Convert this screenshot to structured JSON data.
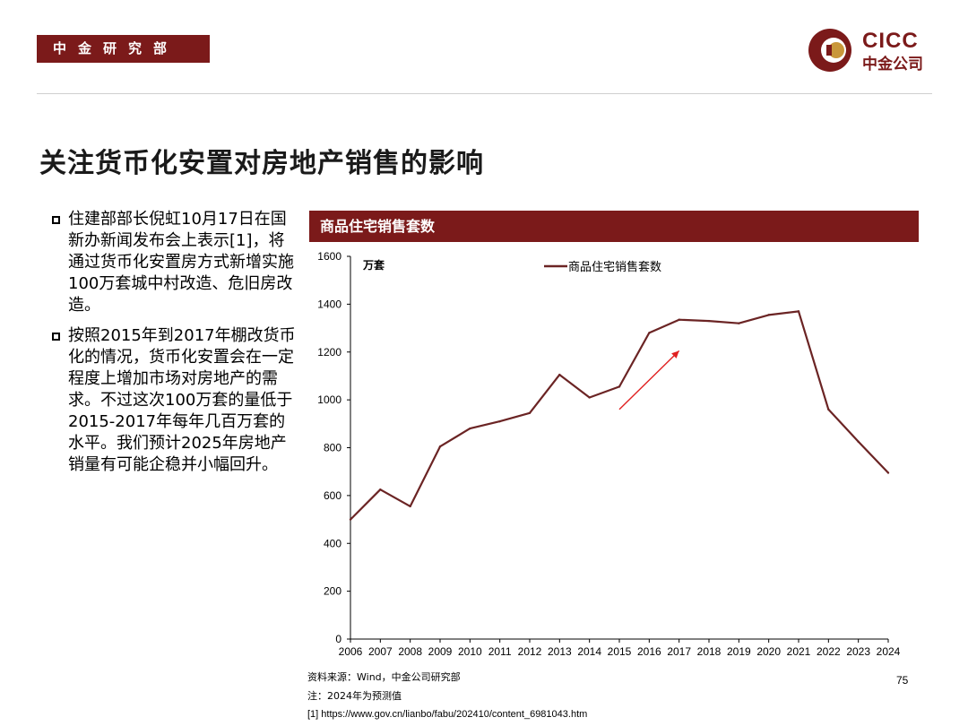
{
  "header": {
    "department": "中金研究部",
    "logo_en": "CICC",
    "logo_cn": "中金公司"
  },
  "title": "关注货币化安置对房地产销售的影响",
  "bullets": [
    {
      "text": "住建部部长倪虹10月17日在国新办新闻发布会上表示[1]，将通过货币化安置房方式新增实施100万套城中村改造、危旧房改造。"
    },
    {
      "text": "按照2015年到2017年棚改货币化的情况，货币化安置会在一定程度上增加市场对房地产的需求。不过这次100万套的量低于2015-2017年每年几百万套的水平。我们预计2025年房地产销量有可能企稳并小幅回升。"
    }
  ],
  "chart_header": "商品住宅销售套数",
  "chart_data": {
    "type": "line",
    "title": "商品住宅销售套数",
    "unit_label": "万套",
    "x": [
      "2006",
      "2007",
      "2008",
      "2009",
      "2010",
      "2011",
      "2012",
      "2013",
      "2014",
      "2015",
      "2016",
      "2017",
      "2018",
      "2019",
      "2020",
      "2021",
      "2022",
      "2023",
      "2024"
    ],
    "series": [
      {
        "name": "商品住宅销售套数",
        "color": "#6b2424",
        "values": [
          500,
          625,
          555,
          805,
          880,
          910,
          945,
          1105,
          1010,
          1055,
          1280,
          1335,
          1330,
          1320,
          1355,
          1370,
          960,
          825,
          695
        ]
      }
    ],
    "ylim": [
      0,
      1600
    ],
    "yticks": [
      0,
      200,
      400,
      600,
      800,
      1000,
      1200,
      1400,
      1600
    ],
    "legend_position": "top-center",
    "grid": false,
    "annotation": {
      "type": "arrow",
      "color": "#e02020",
      "from": [
        2015,
        960
      ],
      "to": [
        2017,
        1205
      ]
    }
  },
  "notes": {
    "source": "资料来源：Wind，中金公司研究部",
    "note": "注：2024年为预测值",
    "ref": "[1] https://www.gov.cn/lianbo/fabu/202410/content_6981043.htm"
  },
  "page_number": "75"
}
